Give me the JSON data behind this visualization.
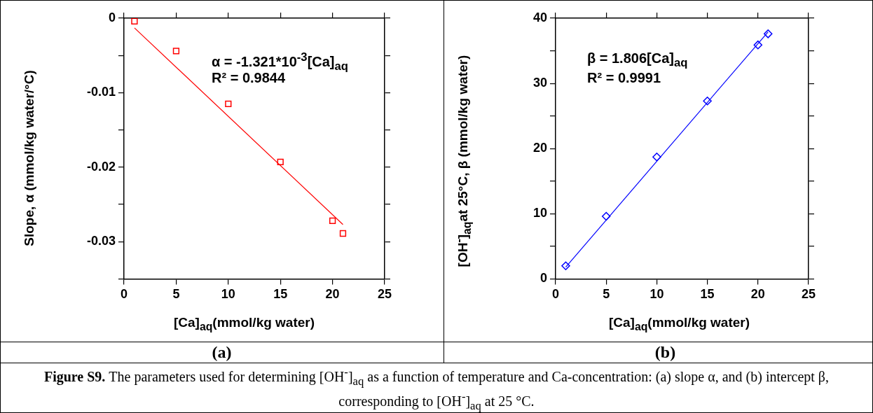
{
  "chart_data": [
    {
      "type": "scatter",
      "xlabel": "[Ca]$_{aq}$(mmol/kg water)",
      "ylabel": "Slope, α (mmol/kg water/°C)",
      "xlim": [
        0,
        25
      ],
      "xticks": [
        0,
        5,
        10,
        15,
        20,
        25
      ],
      "ylim": [
        -0.035,
        0
      ],
      "yticks": [
        0,
        {
          "value": -0.005,
          "label": null
        },
        -0.01,
        {
          "value": -0.015,
          "label": null
        },
        -0.02,
        {
          "value": -0.025,
          "label": null
        },
        -0.03,
        {
          "value": -0.035,
          "label": null
        }
      ],
      "grid": false,
      "series": [
        {
          "type": "scatter",
          "color": "#ff0000",
          "marker": "square",
          "x": [
            1,
            5,
            10,
            15,
            20,
            21
          ],
          "values": [
            -0.0004,
            -0.0044,
            -0.0115,
            -0.0193,
            -0.0272,
            -0.0289
          ]
        },
        {
          "type": "line",
          "color": "#ff0000",
          "marker": "none",
          "x": [
            1,
            21
          ],
          "values": [
            -0.0013,
            -0.0277
          ]
        }
      ],
      "annotations": [
        "α = -1.321*10$^{-3}$[Ca]$_{aq}$",
        "R² = 0.9844",
        "(a)",
        "Figure S9.",
        "The parameters used for determining [OH$^{-}$]$_{aq}$ as a function of temperature and Ca-concentration: (a) slope α, and (b) intercept β, corresponding to [OH$^{-}$]$_{aq}$ at 25 °C."
      ]
    },
    {
      "type": "scatter",
      "xlabel": "[Ca]$_{aq}$(mmol/kg water)",
      "ylabel": "[OH$^{-}$]$_{aq}$at 25°C, β (mmol/kg water)",
      "xlim": [
        0,
        25
      ],
      "xticks": [
        0,
        5,
        10,
        15,
        20,
        25
      ],
      "ylim": [
        0,
        40
      ],
      "yticks": [
        0,
        {
          "value": 5,
          "label": null
        },
        10,
        {
          "value": 15,
          "label": null
        },
        20,
        {
          "value": 25,
          "label": null
        },
        30,
        {
          "value": 35,
          "label": null
        },
        40
      ],
      "grid": false,
      "series": [
        {
          "type": "scatter",
          "color": "#0000ff",
          "marker": "diamond",
          "x": [
            1,
            5,
            10,
            15,
            20,
            21
          ],
          "values": [
            2.0,
            9.6,
            18.7,
            27.3,
            35.9,
            37.6
          ]
        },
        {
          "type": "line",
          "color": "#0000ff",
          "marker": "none",
          "x": [
            1,
            21
          ],
          "values": [
            1.8,
            37.9
          ]
        }
      ],
      "annotations": [
        "β = 1.806[Ca]$_{aq}$",
        "R² = 0.9991",
        "(b)"
      ]
    }
  ]
}
